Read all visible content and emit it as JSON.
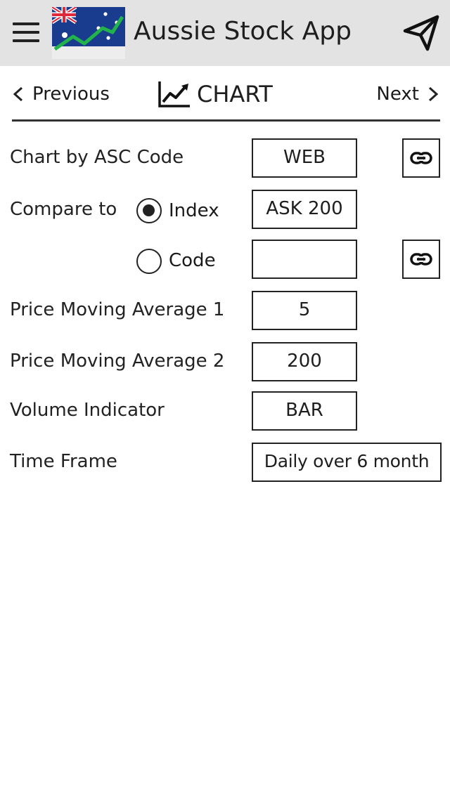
{
  "header": {
    "title": "Aussie Stock App",
    "menu_icon": "hamburger-menu-icon",
    "logo_icon": "aussie-flag-chart-logo",
    "send_icon": "paper-plane-icon"
  },
  "nav": {
    "previous_label": "Previous",
    "next_label": "Next",
    "center_label": "CHART",
    "center_icon": "line-chart-icon"
  },
  "form": {
    "asc_code": {
      "label": "Chart by ASC Code",
      "value": "WEB",
      "link_icon": "link-icon"
    },
    "compare": {
      "label": "Compare to",
      "selected": "Index",
      "options": [
        {
          "label": "Index",
          "value": "ASK 200",
          "selected": true
        },
        {
          "label": "Code",
          "value": "",
          "selected": false,
          "link_icon": "link-icon"
        }
      ]
    },
    "pma1": {
      "label": "Price Moving Average 1",
      "value": "5"
    },
    "pma2": {
      "label": "Price Moving Average 2",
      "value": "200"
    },
    "volume": {
      "label": "Volume Indicator",
      "value": "BAR"
    },
    "timeframe": {
      "label": "Time Frame",
      "value": "Daily over 6 month"
    }
  },
  "colors": {
    "header_bg": "#e3e3e3",
    "logo_bg": "#1a3c8f",
    "logo_line": "#22b34a",
    "text": "#1a1a1a",
    "border": "#222222"
  }
}
